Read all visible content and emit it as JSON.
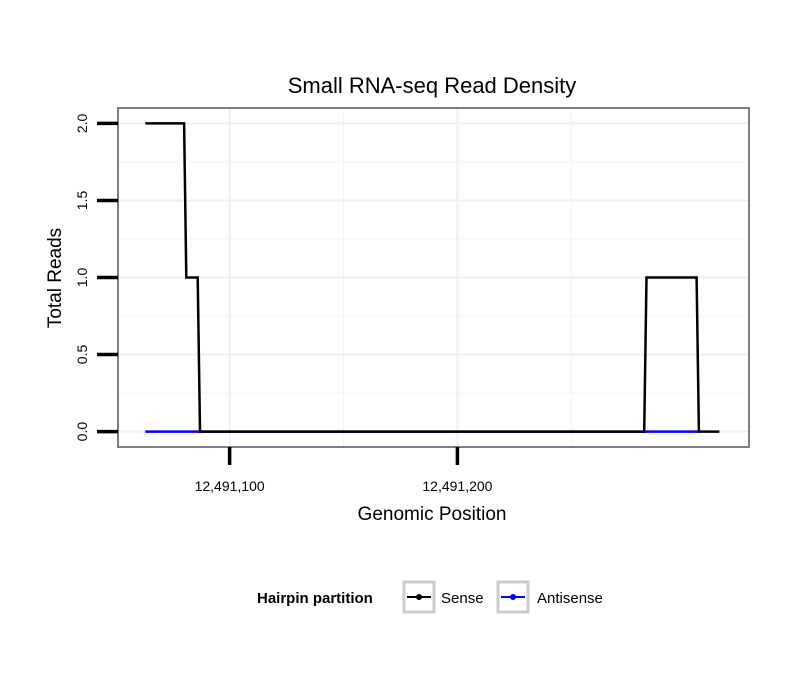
{
  "chart_data": {
    "type": "line",
    "title": "Small RNA-seq Read Density",
    "xlabel": "Genomic Position",
    "ylabel": "Total Reads",
    "xlim": [
      12491051,
      12491328
    ],
    "ylim": [
      -0.1,
      2.1
    ],
    "x_ticks": [
      {
        "value": 12491100,
        "label": "12,491,100"
      },
      {
        "value": 12491200,
        "label": "12,491,200"
      }
    ],
    "y_ticks": [
      {
        "value": 0.0,
        "label": "0.0"
      },
      {
        "value": 0.5,
        "label": "0.5"
      },
      {
        "value": 1.0,
        "label": "1.0"
      },
      {
        "value": 1.5,
        "label": "1.5"
      },
      {
        "value": 2.0,
        "label": "2.0"
      }
    ],
    "x_grid_minor": [
      12491050,
      12491150,
      12491250
    ],
    "y_grid_minor": [
      0.25,
      0.75,
      1.25,
      1.75
    ],
    "series": [
      {
        "name": "Sense",
        "color": "#000000",
        "points": [
          [
            12491063,
            2
          ],
          [
            12491080,
            2
          ],
          [
            12491081,
            1
          ],
          [
            12491086,
            1
          ],
          [
            12491087,
            0
          ],
          [
            12491282,
            0
          ],
          [
            12491283,
            1
          ],
          [
            12491305,
            1
          ],
          [
            12491306,
            0
          ],
          [
            12491315,
            0
          ]
        ]
      },
      {
        "name": "Antisense",
        "color": "#0000ff",
        "points": [
          [
            12491063,
            0
          ],
          [
            12491306,
            0
          ]
        ]
      }
    ],
    "legend": {
      "title": "Hairpin partition",
      "position": "bottom",
      "items": [
        {
          "label": "Sense",
          "color": "#000000"
        },
        {
          "label": "Antisense",
          "color": "#0000ff"
        }
      ]
    }
  }
}
